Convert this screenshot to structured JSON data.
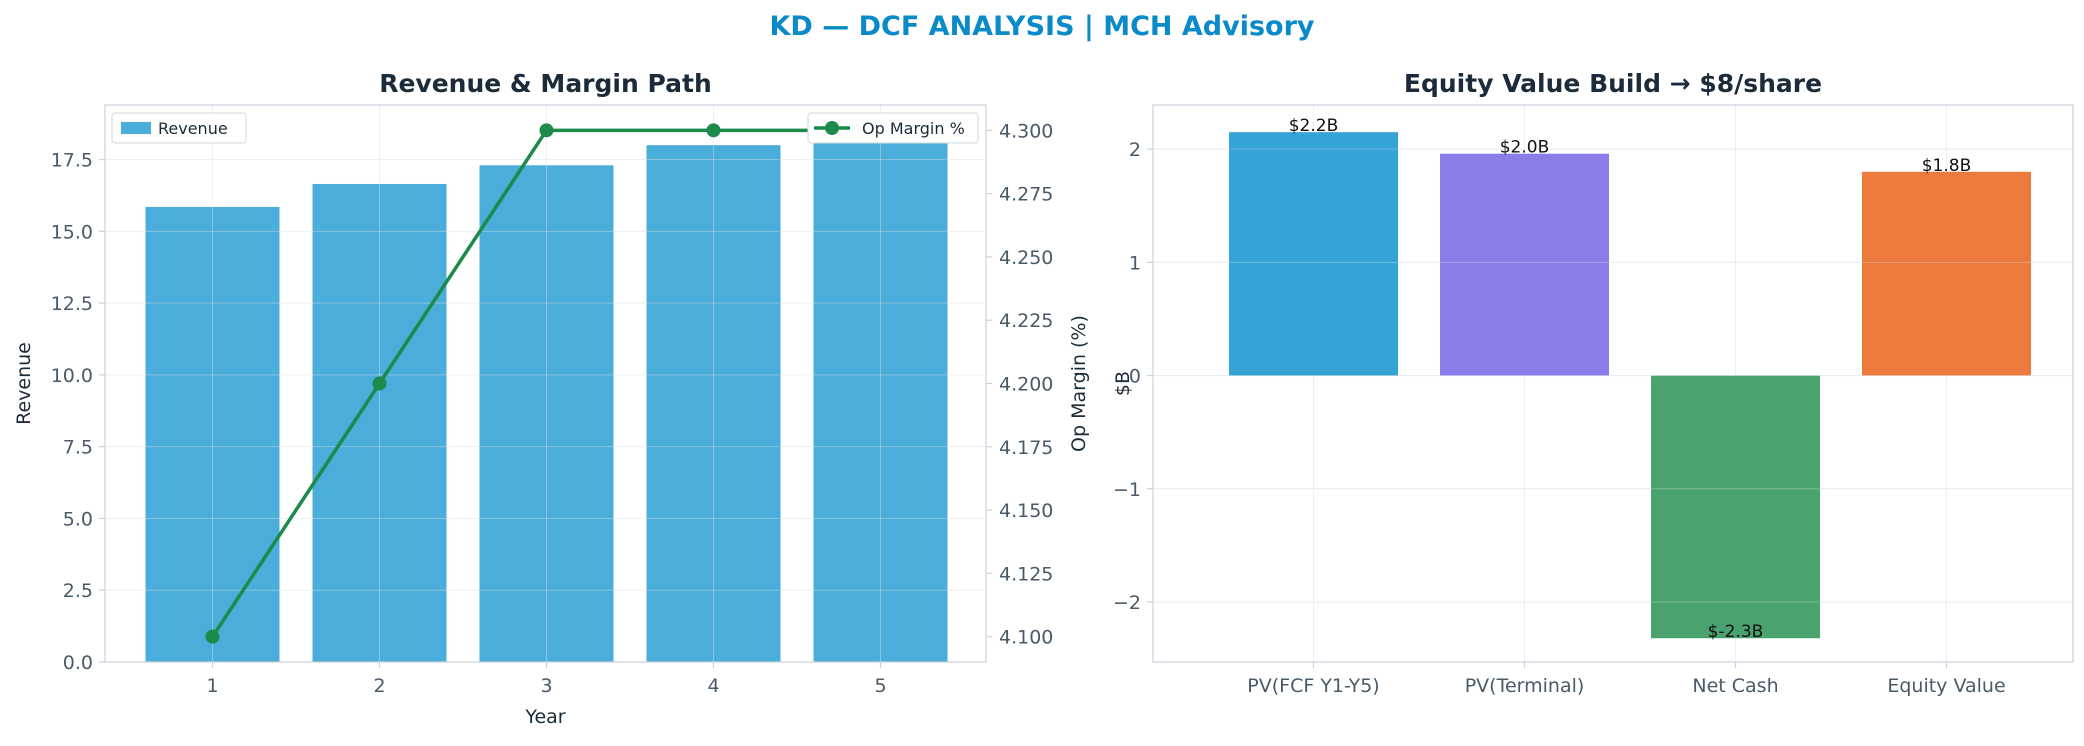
{
  "figure": {
    "suptitle": "KD — DCF ANALYSIS | MCH Advisory"
  },
  "colors": {
    "title": "#0a8ac8",
    "dark": "#1c2b3a",
    "tick": "#4a5a6a",
    "axis": "#c9d3dc",
    "grid": "#eef1f4",
    "revenue_bar": "#4badd9",
    "op_margin_line": "#1b8a4a",
    "pv_fcf": "#34a3d5",
    "pv_terminal": "#8a7de9",
    "net_cash": "#4aa26e",
    "equity_value": "#ec7a3d"
  },
  "chart_data": [
    {
      "type": "bar",
      "title": "Revenue & Margin Path",
      "xlabel": "Year",
      "ylabel": "Revenue",
      "y2label": "Op Margin (%)",
      "categories": [
        "1",
        "2",
        "3",
        "4",
        "5"
      ],
      "series": [
        {
          "name": "Revenue",
          "kind": "bar",
          "axis": "left",
          "values": [
            15.85,
            16.65,
            17.3,
            18.0,
            18.75
          ]
        },
        {
          "name": "Op Margin %",
          "kind": "line",
          "axis": "right",
          "values": [
            4.1,
            4.2,
            4.3,
            4.3,
            4.3
          ]
        }
      ],
      "ylim": [
        0,
        19.4
      ],
      "y2lim": [
        4.09,
        4.31
      ],
      "yticks": [
        "0.0",
        "2.5",
        "5.0",
        "7.5",
        "10.0",
        "12.5",
        "15.0",
        "17.5"
      ],
      "y2ticks": [
        "4.100",
        "4.125",
        "4.150",
        "4.175",
        "4.200",
        "4.225",
        "4.250",
        "4.275",
        "4.300"
      ],
      "legend_left": "top-left",
      "legend_right": "top-right",
      "grid": true
    },
    {
      "type": "bar",
      "title": "Equity Value Build → $8/share",
      "xlabel": "",
      "ylabel": "$B",
      "categories": [
        "PV(FCF Y1-Y5)",
        "PV(Terminal)",
        "Net Cash",
        "Equity Value"
      ],
      "values": [
        2.15,
        1.96,
        -2.32,
        1.8
      ],
      "data_labels": [
        "$2.2B",
        "$2.0B",
        "$-2.3B",
        "$1.8B"
      ],
      "ylim": [
        -2.53,
        2.39
      ],
      "yticks": [
        "−2",
        "−1",
        "0",
        "1",
        "2"
      ],
      "grid": true
    }
  ]
}
